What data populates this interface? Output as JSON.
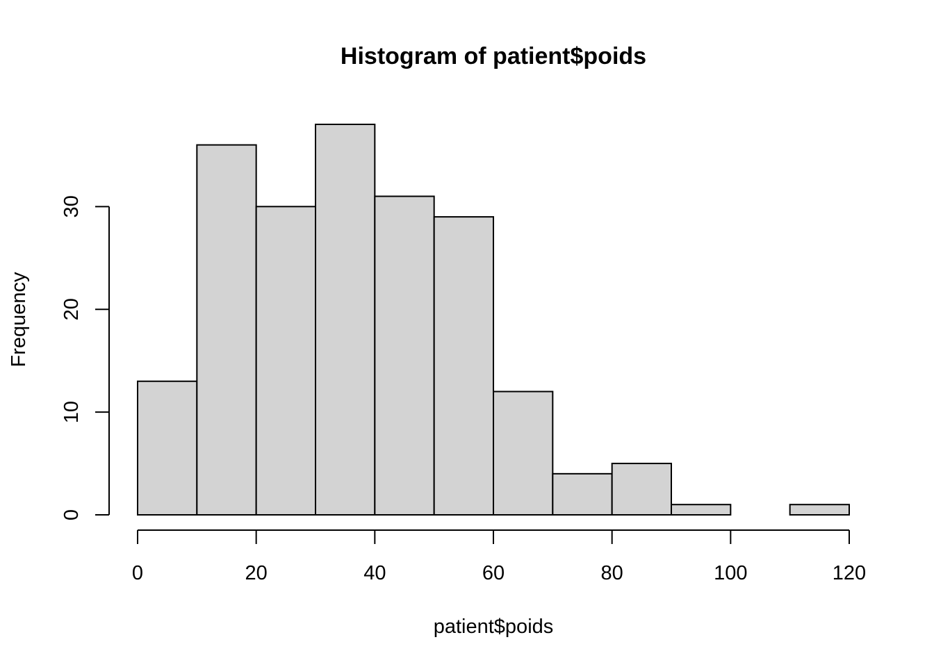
{
  "chart_data": {
    "type": "bar",
    "title": "Histogram of patient$poids",
    "xlabel": "patient$poids",
    "ylabel": "Frequency",
    "bins": [
      {
        "from": 0,
        "to": 10,
        "count": 13
      },
      {
        "from": 10,
        "to": 20,
        "count": 36
      },
      {
        "from": 20,
        "to": 30,
        "count": 30
      },
      {
        "from": 30,
        "to": 40,
        "count": 38
      },
      {
        "from": 40,
        "to": 50,
        "count": 31
      },
      {
        "from": 50,
        "to": 60,
        "count": 29
      },
      {
        "from": 60,
        "to": 70,
        "count": 12
      },
      {
        "from": 70,
        "to": 80,
        "count": 4
      },
      {
        "from": 80,
        "to": 90,
        "count": 5
      },
      {
        "from": 90,
        "to": 100,
        "count": 1
      },
      {
        "from": 100,
        "to": 110,
        "count": 0
      },
      {
        "from": 110,
        "to": 120,
        "count": 1
      }
    ],
    "x_ticks": [
      "0",
      "20",
      "40",
      "60",
      "80",
      "100",
      "120"
    ],
    "y_ticks": [
      "0",
      "10",
      "20",
      "30"
    ],
    "xlim": [
      0,
      120
    ],
    "ylim": [
      0,
      38
    ],
    "grid": false,
    "colors": {
      "bar_fill": "#d3d3d3",
      "bar_stroke": "#000000"
    }
  }
}
